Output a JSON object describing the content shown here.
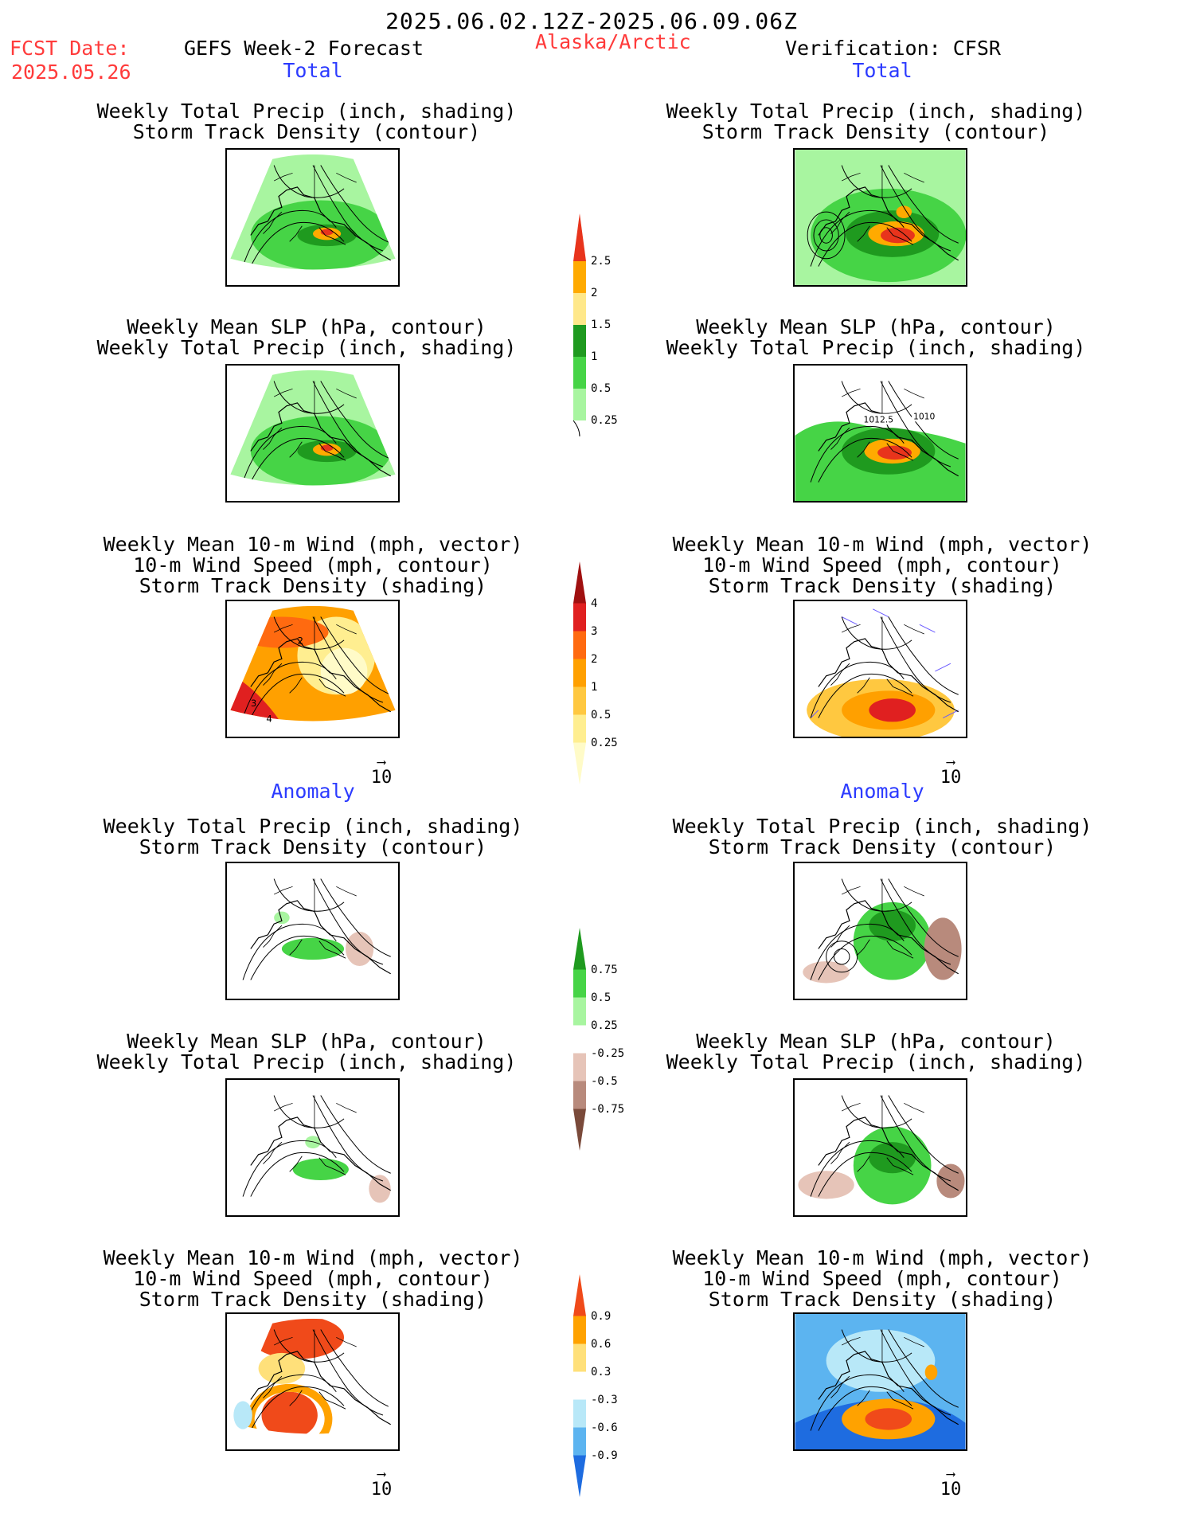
{
  "header": {
    "date_range": "2025.06.02.12Z-2025.06.09.06Z",
    "fcst_label": "FCST Date:",
    "fcst_date": "2025.05.26",
    "product": "GEFS Week-2 Forecast",
    "region": "Alaska/Arctic",
    "verification": "Verification: CFSR"
  },
  "sections": {
    "total_left": "Total",
    "total_right": "Total",
    "anomaly_left": "Anomaly",
    "anomaly_right": "Anomaly"
  },
  "titles": {
    "precip_track": [
      "Weekly Total Precip (inch, shading)",
      "Storm Track Density (contour)"
    ],
    "slp_precip": [
      "Weekly Mean SLP (hPa, contour)",
      "Weekly Total Precip (inch, shading)"
    ],
    "wind_track": [
      "Weekly Mean 10-m Wind (mph, vector)",
      "10-m Wind Speed (mph, contour)",
      "Storm Track Density (shading)"
    ]
  },
  "contour_labels": {
    "slp_obs_a": "1012.5",
    "slp_obs_b": "1010",
    "wind_fcst_a": "2",
    "wind_fcst_b": "3",
    "wind_fcst_c": "4"
  },
  "vector_reference": "10",
  "colorbars": {
    "precip_total": {
      "labels": [
        "2.5",
        "2",
        "1.5",
        "1",
        "0.5",
        "0.25"
      ],
      "colors": [
        "#e8341c",
        "#ffaa00",
        "#ffe88a",
        "#1f9a1f",
        "#46d446",
        "#a8f5a0"
      ]
    },
    "track_total": {
      "labels": [
        "4",
        "3",
        "2",
        "1",
        "0.5",
        "0.25"
      ],
      "colors": [
        "#a01010",
        "#e02020",
        "#ff6a10",
        "#ffa000",
        "#ffc840",
        "#ffee90",
        "#fffbc8"
      ]
    },
    "precip_anom": {
      "labels": [
        "0.75",
        "0.5",
        "0.25",
        "-0.25",
        "-0.5",
        "-0.75"
      ],
      "colors": [
        "#1f9a1f",
        "#46d446",
        "#a8f5a0",
        "#ffffff",
        "#e6c4b8",
        "#b88a7c",
        "#7a4a3a"
      ]
    },
    "track_anom": {
      "labels": [
        "0.9",
        "0.6",
        "0.3",
        "-0.3",
        "-0.6",
        "-0.9"
      ],
      "colors": [
        "#f04a1a",
        "#ffa200",
        "#ffe07a",
        "#ffffff",
        "#b8e8f8",
        "#5cb4f0",
        "#1e6ce0"
      ]
    }
  }
}
